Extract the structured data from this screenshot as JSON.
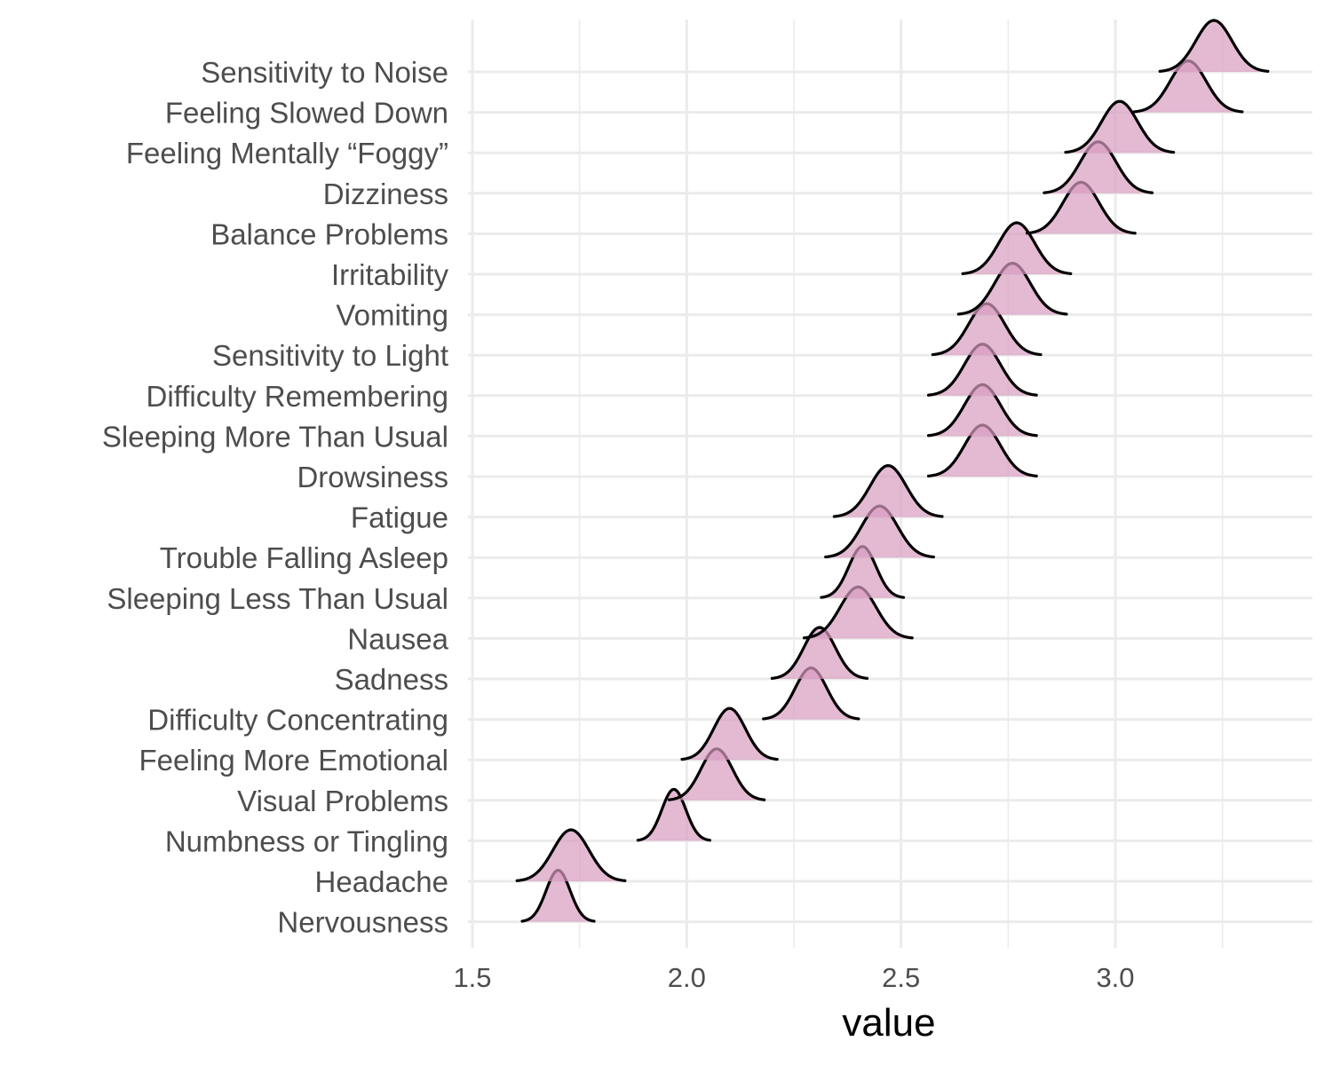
{
  "chart_data": {
    "type": "ridgeline",
    "xlabel": "value",
    "ylabel": "",
    "title": "",
    "xlim": [
      1.5,
      3.45
    ],
    "x_ticks": [
      1.5,
      2.0,
      2.5,
      3.0
    ],
    "x_tick_labels": [
      "1.5",
      "2.0",
      "2.5",
      "3.0"
    ],
    "grid": true,
    "legend": "none",
    "categories": [
      "Sensitivity to Noise",
      "Feeling Slowed Down",
      "Feeling Mentally “Foggy”",
      "Dizziness",
      "Balance Problems",
      "Irritability",
      "Vomiting",
      "Sensitivity to Light",
      "Difficulty Remembering",
      "Sleeping More Than Usual",
      "Drowsiness",
      "Fatigue",
      "Trouble Falling Asleep",
      "Sleeping Less Than Usual",
      "Nausea",
      "Sadness",
      "Difficulty Concentrating",
      "Feeling More Emotional",
      "Visual Problems",
      "Numbness or Tingling",
      "Headache",
      "Nervousness"
    ],
    "distributions": [
      {
        "category": "Sensitivity to Noise",
        "mean": 3.23,
        "sd": 0.042
      },
      {
        "category": "Feeling Slowed Down",
        "mean": 3.17,
        "sd": 0.042
      },
      {
        "category": "Feeling Mentally “Foggy”",
        "mean": 3.01,
        "sd": 0.042
      },
      {
        "category": "Dizziness",
        "mean": 2.96,
        "sd": 0.042
      },
      {
        "category": "Balance Problems",
        "mean": 2.92,
        "sd": 0.042
      },
      {
        "category": "Irritability",
        "mean": 2.77,
        "sd": 0.042
      },
      {
        "category": "Vomiting",
        "mean": 2.76,
        "sd": 0.042
      },
      {
        "category": "Sensitivity to Light",
        "mean": 2.7,
        "sd": 0.042
      },
      {
        "category": "Difficulty Remembering",
        "mean": 2.69,
        "sd": 0.042
      },
      {
        "category": "Sleeping More Than Usual",
        "mean": 2.69,
        "sd": 0.042
      },
      {
        "category": "Drowsiness",
        "mean": 2.69,
        "sd": 0.042
      },
      {
        "category": "Fatigue",
        "mean": 2.47,
        "sd": 0.042
      },
      {
        "category": "Trouble Falling Asleep",
        "mean": 2.45,
        "sd": 0.042
      },
      {
        "category": "Sleeping Less Than Usual",
        "mean": 2.41,
        "sd": 0.032
      },
      {
        "category": "Nausea",
        "mean": 2.4,
        "sd": 0.042
      },
      {
        "category": "Sadness",
        "mean": 2.31,
        "sd": 0.037
      },
      {
        "category": "Difficulty Concentrating",
        "mean": 2.29,
        "sd": 0.037
      },
      {
        "category": "Feeling More Emotional",
        "mean": 2.1,
        "sd": 0.037
      },
      {
        "category": "Visual Problems",
        "mean": 2.07,
        "sd": 0.037
      },
      {
        "category": "Numbness or Tingling",
        "mean": 1.97,
        "sd": 0.028
      },
      {
        "category": "Headache",
        "mean": 1.73,
        "sd": 0.042
      },
      {
        "category": "Nervousness",
        "mean": 1.7,
        "sd": 0.028
      }
    ],
    "fill_color": "#d89cc0",
    "line_color": "#000000",
    "grid_color": "#ebebeb"
  }
}
